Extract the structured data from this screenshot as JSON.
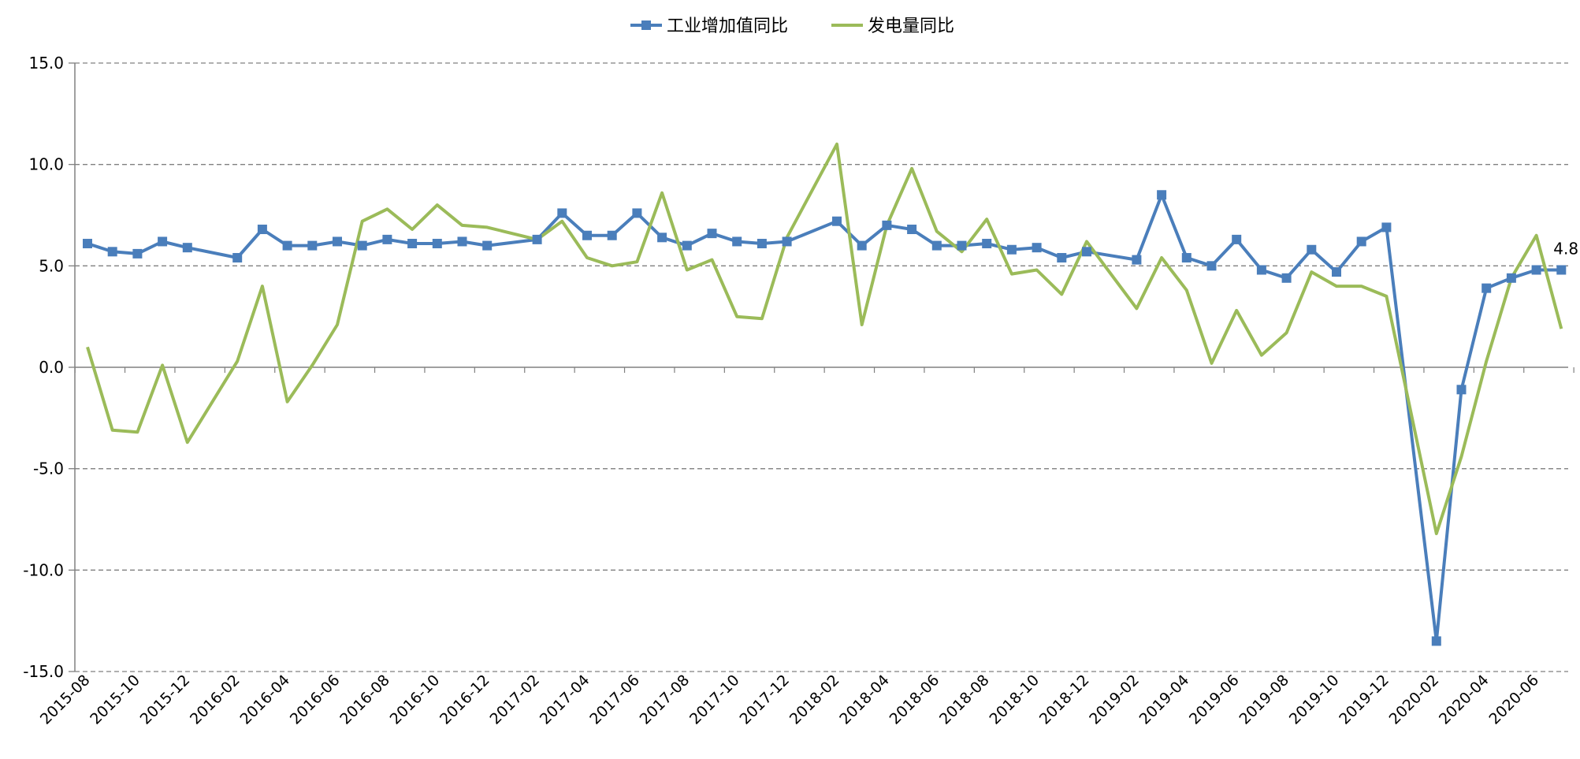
{
  "colors": {
    "series1": "#4a7ebb",
    "series2": "#9bbb59",
    "grid": "#808080",
    "axis": "#808080",
    "text": "#000000"
  },
  "chart_data": {
    "type": "line",
    "title": "",
    "xlabel": "",
    "ylabel": "",
    "ylim": [
      -15,
      15
    ],
    "yticks": [
      15,
      10,
      5,
      0,
      -5,
      -10,
      -15
    ],
    "ytick_labels": [
      "15.0",
      "10.0",
      "5.0",
      "0.0",
      "-5.0",
      "-10.0",
      "-15.0"
    ],
    "grid": "horizontal dashed",
    "legend_position": "top-center",
    "x": [
      "2015-08",
      "2015-09",
      "2015-10",
      "2015-11",
      "2015-12",
      "2016-01",
      "2016-02",
      "2016-03",
      "2016-04",
      "2016-05",
      "2016-06",
      "2016-07",
      "2016-08",
      "2016-09",
      "2016-10",
      "2016-11",
      "2016-12",
      "2017-01",
      "2017-02",
      "2017-03",
      "2017-04",
      "2017-05",
      "2017-06",
      "2017-07",
      "2017-08",
      "2017-09",
      "2017-10",
      "2017-11",
      "2017-12",
      "2018-01",
      "2018-02",
      "2018-03",
      "2018-04",
      "2018-05",
      "2018-06",
      "2018-07",
      "2018-08",
      "2018-09",
      "2018-10",
      "2018-11",
      "2018-12",
      "2019-01",
      "2019-02",
      "2019-03",
      "2019-04",
      "2019-05",
      "2019-06",
      "2019-07",
      "2019-08",
      "2019-09",
      "2019-10",
      "2019-11",
      "2019-12",
      "2020-01",
      "2020-02",
      "2020-03",
      "2020-04",
      "2020-05",
      "2020-06",
      "2020-07"
    ],
    "x_tick_labels": [
      "2015-08",
      "2015-10",
      "2015-12",
      "2016-02",
      "2016-04",
      "2016-06",
      "2016-08",
      "2016-10",
      "2016-12",
      "2017-02",
      "2017-04",
      "2017-06",
      "2017-08",
      "2017-10",
      "2017-12",
      "2018-02",
      "2018-04",
      "2018-06",
      "2018-08",
      "2018-10",
      "2018-12",
      "2019-02",
      "2019-04",
      "2019-06",
      "2019-08",
      "2019-10",
      "2019-12",
      "2020-02",
      "2020-04",
      "2020-06"
    ],
    "series": [
      {
        "name": "工业增加值同比",
        "marker": "square",
        "values": [
          6.1,
          5.7,
          5.6,
          6.2,
          5.9,
          null,
          5.4,
          6.8,
          6.0,
          6.0,
          6.2,
          6.0,
          6.3,
          6.1,
          6.1,
          6.2,
          6.0,
          null,
          6.3,
          7.6,
          6.5,
          6.5,
          7.6,
          6.4,
          6.0,
          6.6,
          6.2,
          6.1,
          6.2,
          null,
          7.2,
          6.0,
          7.0,
          6.8,
          6.0,
          6.0,
          6.1,
          5.8,
          5.9,
          5.4,
          5.7,
          null,
          5.3,
          8.5,
          5.4,
          5.0,
          6.3,
          4.8,
          4.4,
          5.8,
          4.7,
          6.2,
          6.9,
          null,
          -13.5,
          -1.1,
          3.9,
          4.4,
          4.8,
          4.8
        ]
      },
      {
        "name": "发电量同比",
        "marker": "none",
        "values": [
          1.0,
          -3.1,
          -3.2,
          0.1,
          -3.7,
          null,
          0.3,
          4.0,
          -1.7,
          0.1,
          2.1,
          7.2,
          7.8,
          6.8,
          8.0,
          7.0,
          6.9,
          null,
          6.3,
          7.2,
          5.4,
          5.0,
          5.2,
          8.6,
          4.8,
          5.3,
          2.5,
          2.4,
          6.4,
          null,
          11.0,
          2.1,
          7.0,
          9.8,
          6.7,
          5.7,
          7.3,
          4.6,
          4.8,
          3.6,
          6.2,
          null,
          2.9,
          5.4,
          3.8,
          0.2,
          2.8,
          0.6,
          1.7,
          4.7,
          4.0,
          4.0,
          3.5,
          null,
          -8.2,
          -4.4,
          0.3,
          4.4,
          6.5,
          1.9
        ]
      }
    ],
    "annotations": [
      {
        "series": "工业增加值同比",
        "x": "2020-07",
        "text": "4.8"
      }
    ]
  }
}
